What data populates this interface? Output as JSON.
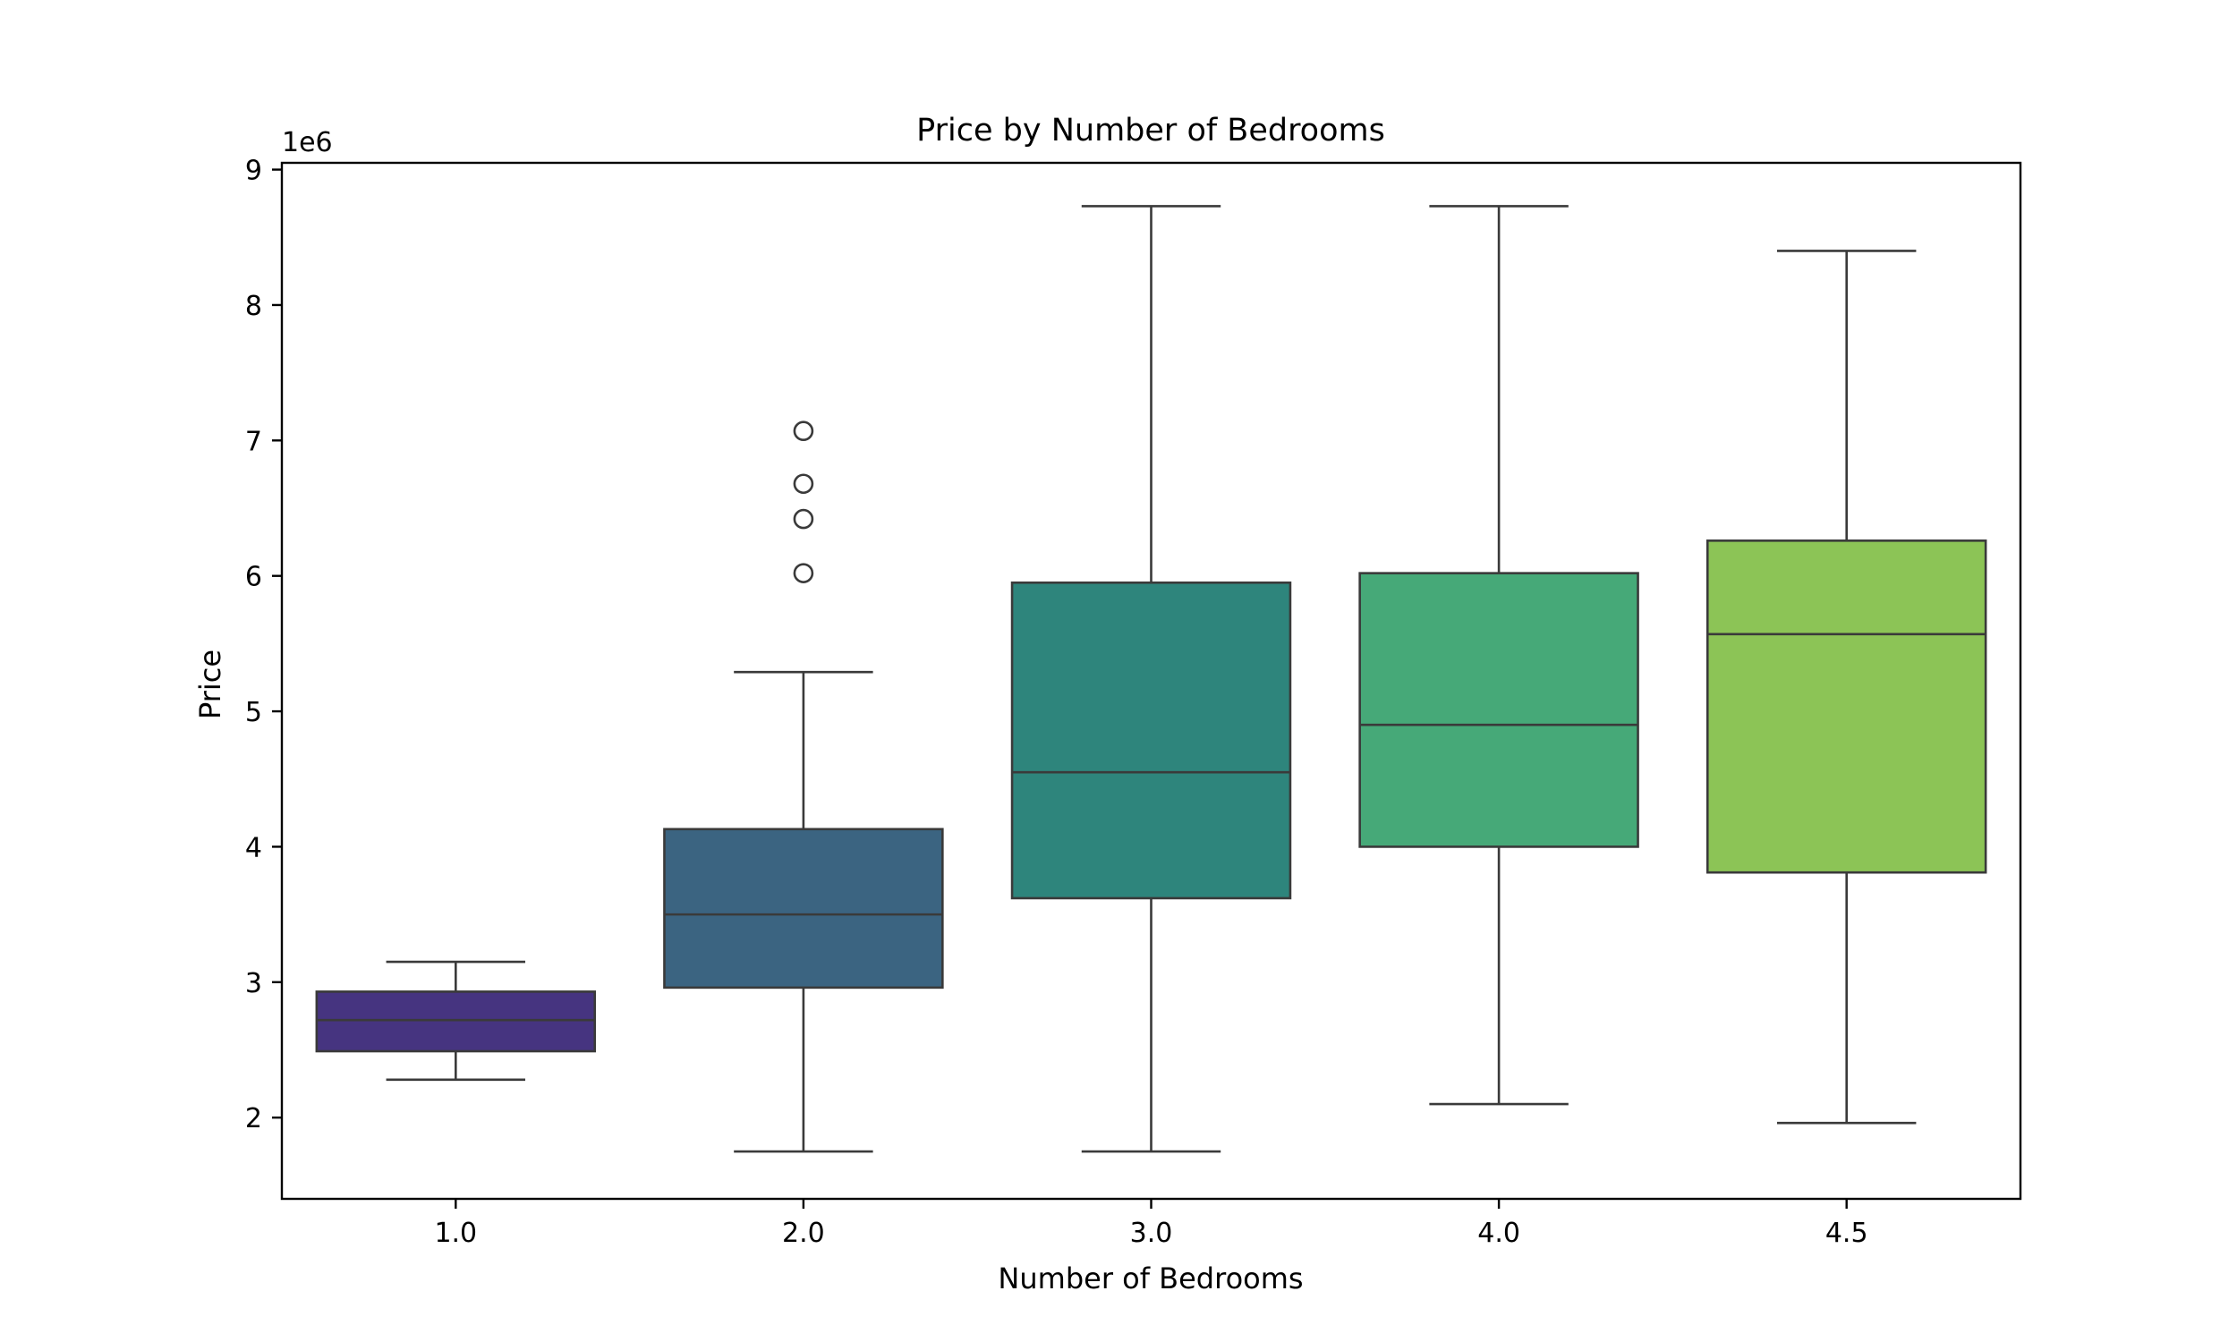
{
  "chart_data": {
    "type": "box",
    "title": "Price by Number of Bedrooms",
    "xlabel": "Number of Bedrooms",
    "ylabel": "Price",
    "y_offset_text": "1e6",
    "ylim": [
      1.4,
      9.05
    ],
    "yticks": [
      2,
      3,
      4,
      5,
      6,
      7,
      8,
      9
    ],
    "ytick_labels": [
      "2",
      "3",
      "4",
      "5",
      "6",
      "7",
      "8",
      "9"
    ],
    "categories": [
      "1.0",
      "2.0",
      "3.0",
      "4.0",
      "4.5"
    ],
    "grid": false,
    "boxes": [
      {
        "category": "1.0",
        "color": "#463480",
        "whisker_low": 2.28,
        "q1": 2.49,
        "median": 2.72,
        "q3": 2.93,
        "whisker_high": 3.15,
        "outliers": []
      },
      {
        "category": "2.0",
        "color": "#3b6481",
        "whisker_low": 1.75,
        "q1": 2.96,
        "median": 3.5,
        "q3": 4.13,
        "whisker_high": 5.29,
        "outliers": [
          6.02,
          6.42,
          6.68,
          7.07
        ]
      },
      {
        "category": "3.0",
        "color": "#2e857c",
        "whisker_low": 1.75,
        "q1": 3.62,
        "median": 4.55,
        "q3": 5.95,
        "whisker_high": 8.73,
        "outliers": []
      },
      {
        "category": "4.0",
        "color": "#46a978",
        "whisker_low": 2.1,
        "q1": 4.0,
        "median": 4.9,
        "q3": 6.02,
        "whisker_high": 8.73,
        "outliers": []
      },
      {
        "category": "4.5",
        "color": "#8cc456",
        "whisker_low": 1.96,
        "q1": 3.81,
        "median": 5.57,
        "q3": 6.26,
        "whisker_high": 8.4,
        "outliers": []
      }
    ]
  }
}
